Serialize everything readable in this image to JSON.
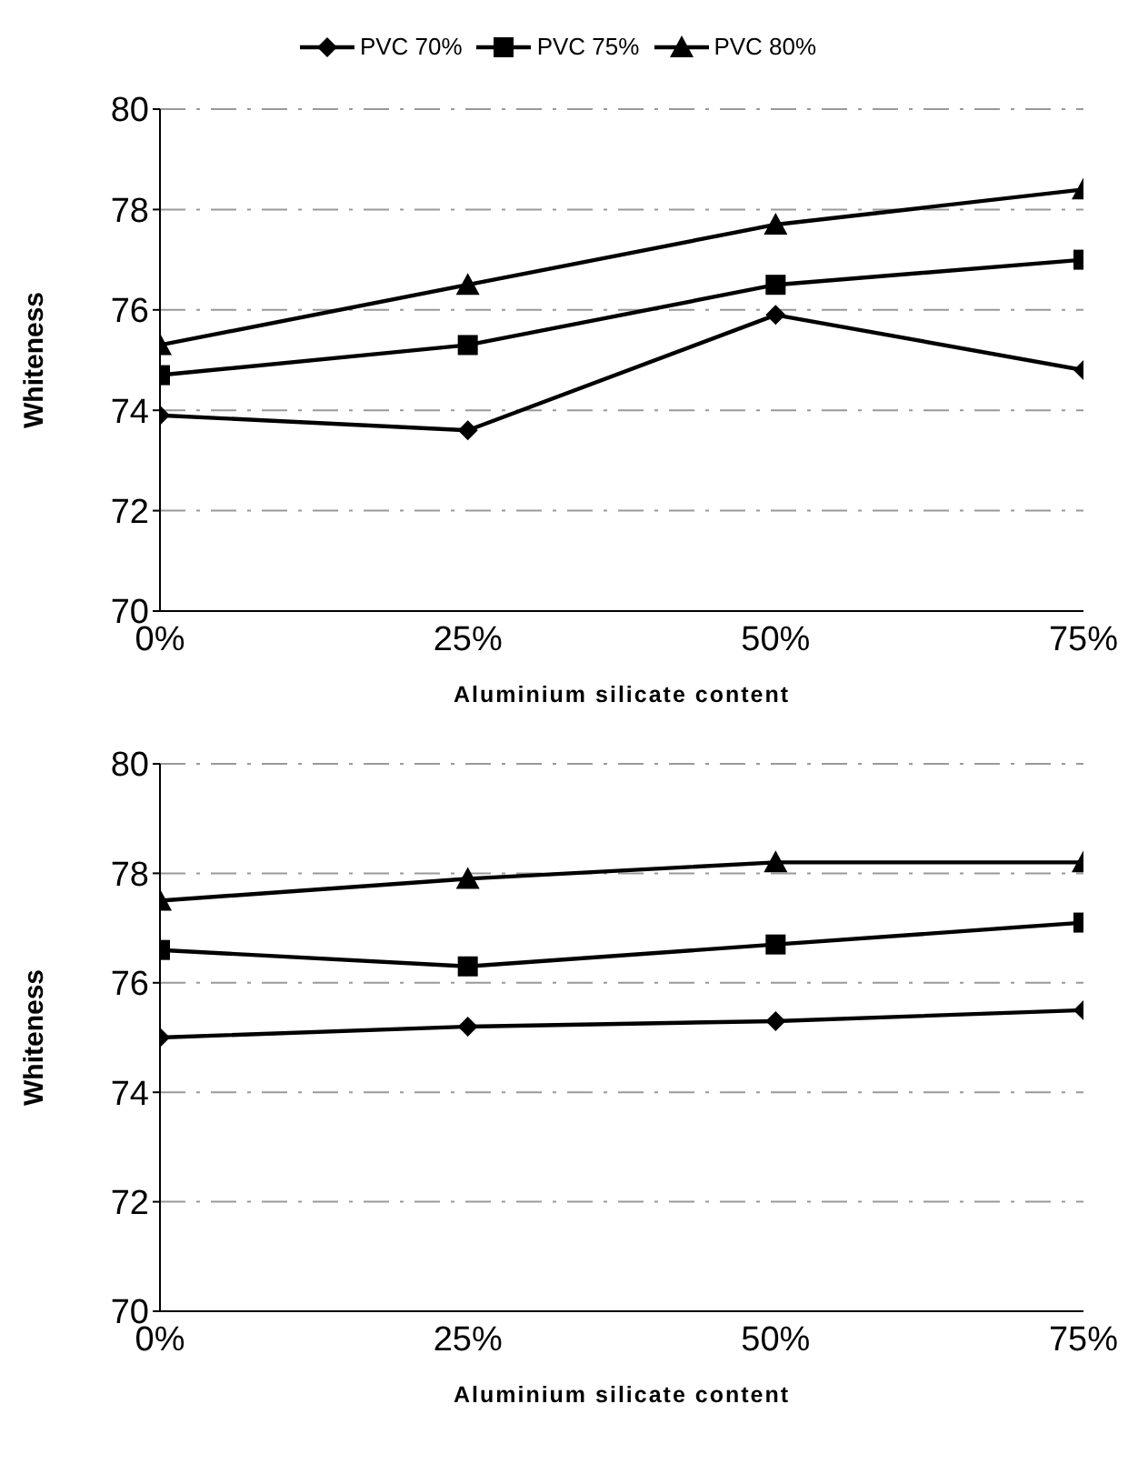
{
  "chart_data": [
    {
      "type": "line",
      "xlabel": "Aluminium silicate content",
      "ylabel": "Whiteness",
      "categories": [
        "0%",
        "25%",
        "50%",
        "75%"
      ],
      "ylim": [
        70,
        80
      ],
      "yticks": [
        70,
        72,
        74,
        76,
        78,
        80
      ],
      "grid": "y",
      "legend": "top",
      "series": [
        {
          "name": "PVC 70%",
          "color": "#000000",
          "marker": "diamond",
          "values": [
            73.9,
            73.6,
            75.9,
            74.8
          ]
        },
        {
          "name": "PVC 75%",
          "color": "#000000",
          "marker": "square",
          "values": [
            74.7,
            75.3,
            76.5,
            77.0
          ]
        },
        {
          "name": "PVC 80%",
          "color": "#000000",
          "marker": "triangle",
          "values": [
            75.3,
            76.5,
            77.7,
            78.4
          ]
        }
      ]
    },
    {
      "type": "line",
      "xlabel": "Aluminium silicate content",
      "ylabel": "Whiteness",
      "categories": [
        "0%",
        "25%",
        "50%",
        "75%"
      ],
      "ylim": [
        70,
        80
      ],
      "yticks": [
        70,
        72,
        74,
        76,
        78,
        80
      ],
      "grid": "y",
      "legend": false,
      "series": [
        {
          "color": "#000000",
          "marker": "diamond",
          "values": [
            75.0,
            75.2,
            75.3,
            75.5
          ]
        },
        {
          "color": "#000000",
          "marker": "square",
          "values": [
            76.6,
            76.3,
            76.7,
            77.1
          ]
        },
        {
          "color": "#000000",
          "marker": "triangle",
          "values": [
            77.5,
            77.9,
            78.2,
            78.2
          ]
        }
      ]
    }
  ]
}
